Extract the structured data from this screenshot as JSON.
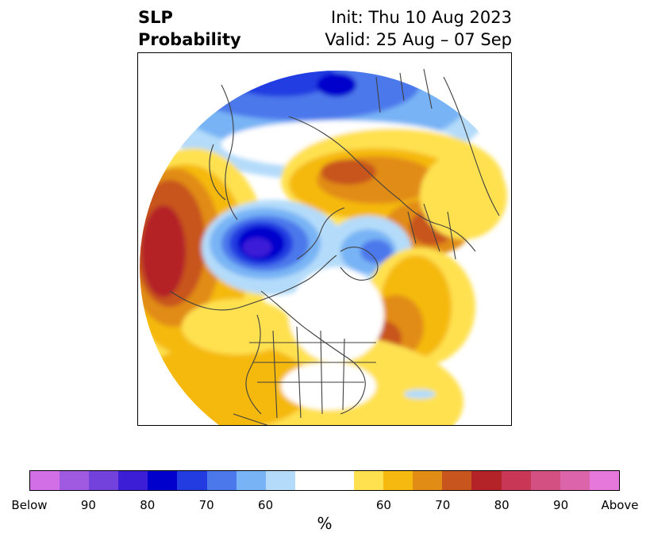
{
  "title": {
    "left_line1": "SLP",
    "left_line2": "Probability",
    "right_line1": "Init: Thu 10 Aug 2023",
    "right_line2": "Valid: 25 Aug – 07 Sep"
  },
  "colorbar": {
    "unit": "%",
    "colors": [
      "#d26ee6",
      "#a05ae1",
      "#7341dc",
      "#3c1ed7",
      "#0000cd",
      "#233ce1",
      "#4b78eb",
      "#78b4f5",
      "#b4dcfa",
      "#ffffff",
      "#ffe150",
      "#f5b90f",
      "#e18c14",
      "#c8551e",
      "#b42328",
      "#c83755",
      "#d25082",
      "#dc64aa",
      "#e678dc"
    ],
    "ticks": [
      {
        "label": "Below",
        "index": 0
      },
      {
        "label": "90",
        "index": 2
      },
      {
        "label": "80",
        "index": 4
      },
      {
        "label": "70",
        "index": 6
      },
      {
        "label": "60",
        "index": 8
      },
      {
        "label": "60",
        "index": 11
      },
      {
        "label": "70",
        "index": 13
      },
      {
        "label": "80",
        "index": 15
      },
      {
        "label": "90",
        "index": 17
      },
      {
        "label": "Above",
        "index": 19
      }
    ]
  },
  "map": {
    "projection": "north-polar-stereographic"
  }
}
